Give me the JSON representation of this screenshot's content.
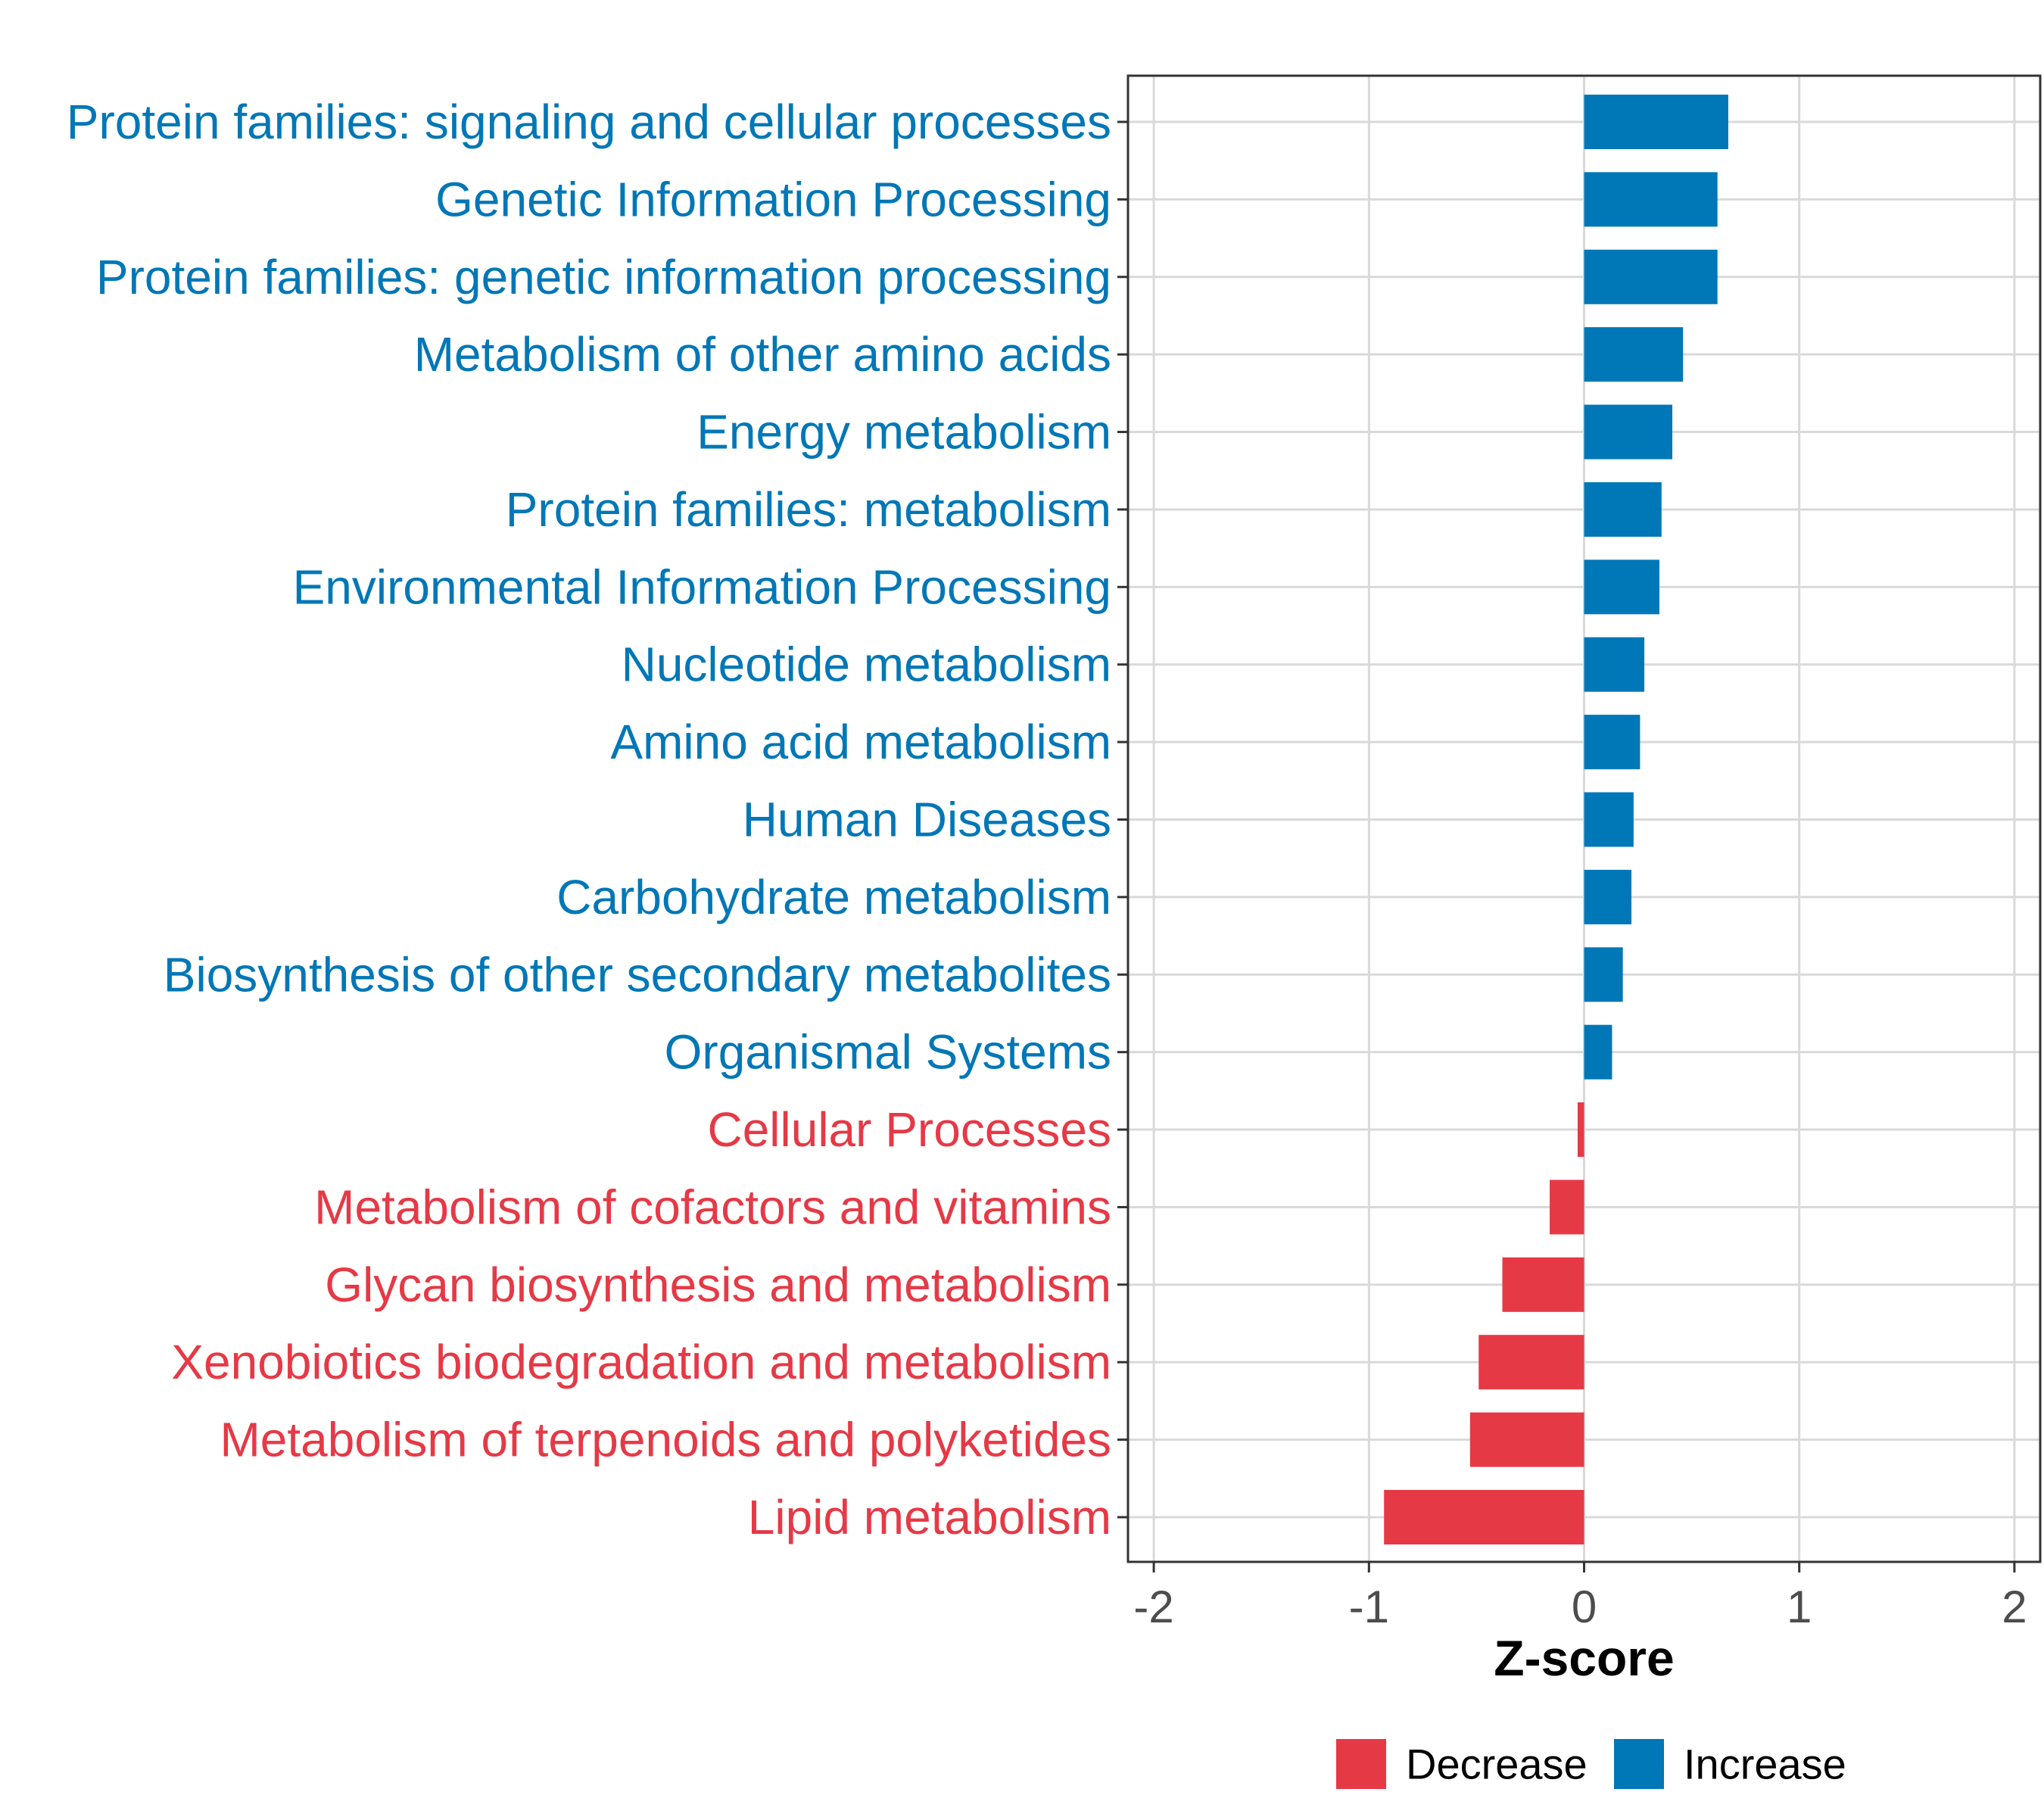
{
  "chart_data": {
    "type": "bar",
    "orientation": "horizontal",
    "categories": [
      "Protein families: signaling and cellular processes",
      "Genetic Information Processing",
      "Protein families: genetic information processing",
      "Metabolism of other amino acids",
      "Energy metabolism",
      "Protein families: metabolism",
      "Environmental Information Processing",
      "Nucleotide metabolism",
      "Amino acid metabolism",
      "Human Diseases",
      "Carbohydrate metabolism",
      "Biosynthesis of other secondary metabolites",
      "Organismal Systems",
      "Cellular Processes",
      "Metabolism of cofactors and vitamins",
      "Glycan biosynthesis and metabolism",
      "Xenobiotics biodegradation and metabolism",
      "Metabolism of terpenoids and polyketides",
      "Lipid metabolism"
    ],
    "values": [
      0.67,
      0.62,
      0.62,
      0.46,
      0.41,
      0.36,
      0.35,
      0.28,
      0.26,
      0.23,
      0.22,
      0.18,
      0.13,
      -0.03,
      -0.16,
      -0.38,
      -0.49,
      -0.53,
      -0.93
    ],
    "groups": [
      "Increase",
      "Increase",
      "Increase",
      "Increase",
      "Increase",
      "Increase",
      "Increase",
      "Increase",
      "Increase",
      "Increase",
      "Increase",
      "Increase",
      "Increase",
      "Decrease",
      "Decrease",
      "Decrease",
      "Decrease",
      "Decrease",
      "Decrease"
    ],
    "title": "",
    "xlabel": "Z-score",
    "ylabel": "",
    "xlim": [
      -2.12,
      2.12
    ],
    "xticks": [
      -2,
      -1,
      0,
      1,
      2
    ],
    "xtick_labels": [
      "-2",
      "-1",
      "0",
      "1",
      "2"
    ],
    "grid": true,
    "legend": {
      "placement": "bottom",
      "entries": [
        {
          "label": "Decrease",
          "color": "#e63946"
        },
        {
          "label": "Increase",
          "color": "#0077b6"
        }
      ]
    },
    "colors": {
      "Increase": "#0077b6",
      "Decrease": "#e63946"
    }
  }
}
